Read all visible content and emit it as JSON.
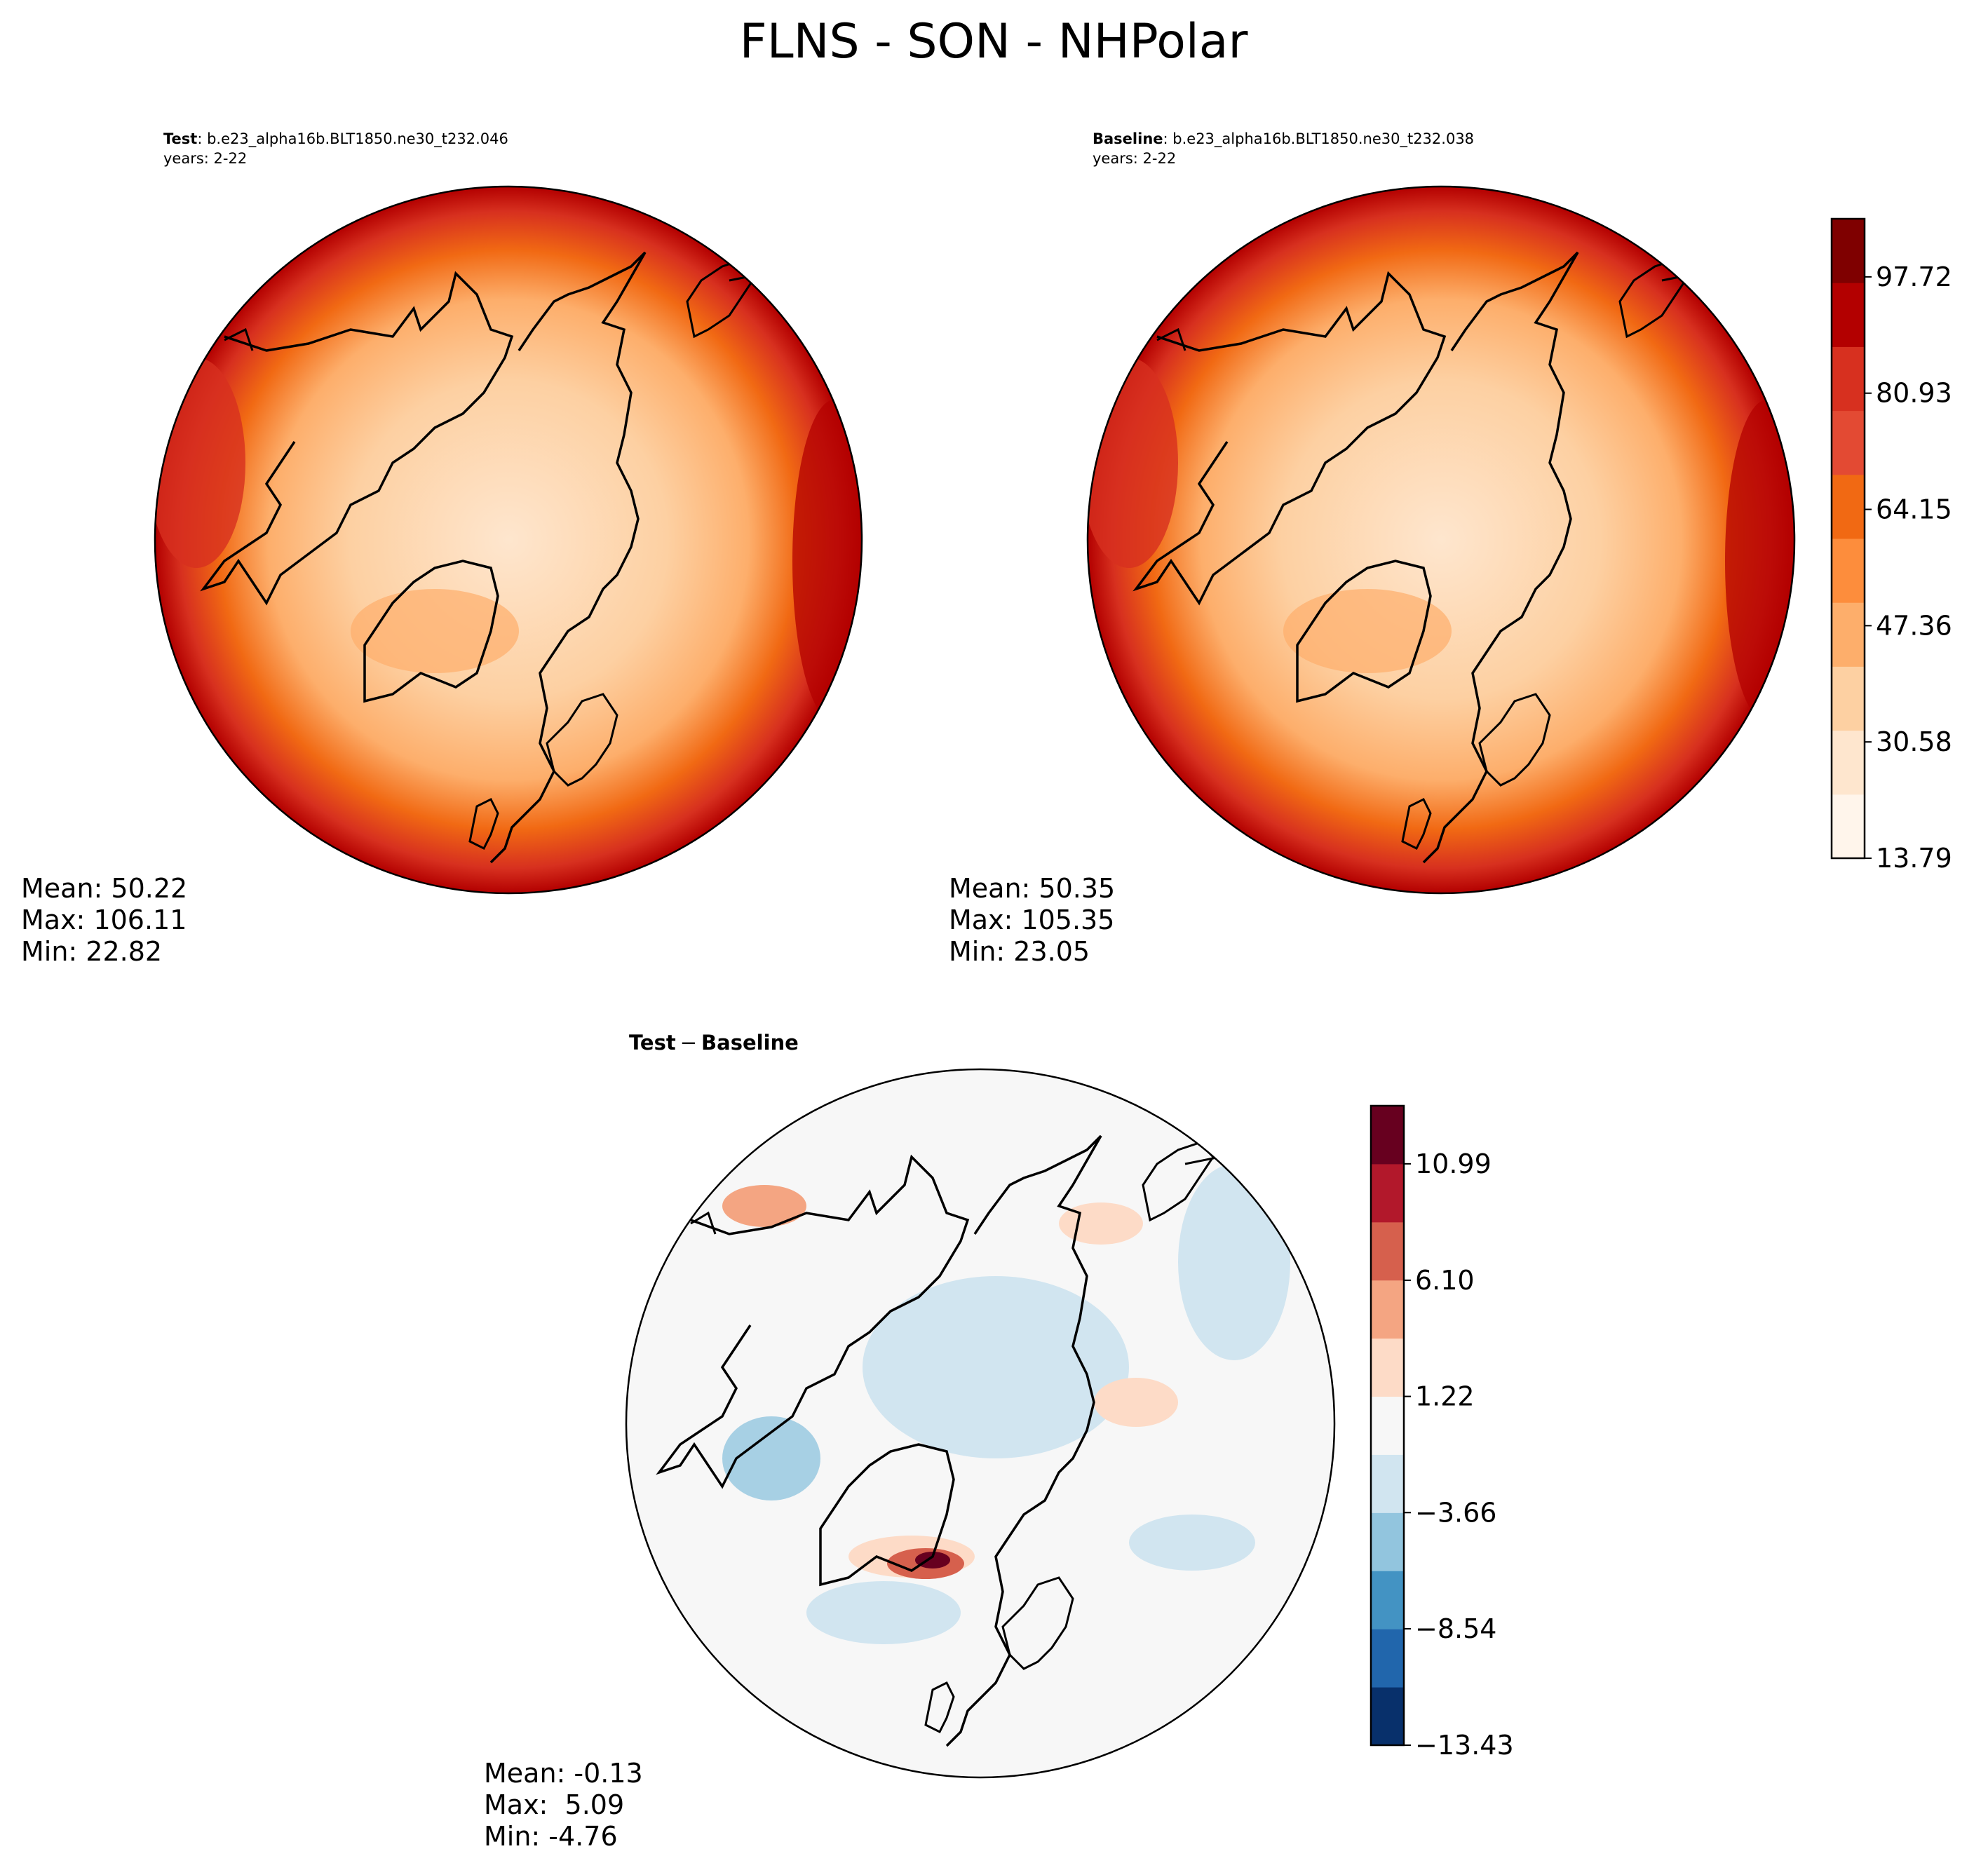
{
  "figure": {
    "title": "FLNS - SON - NHPolar"
  },
  "colors": {
    "reds": [
      "#fff5eb",
      "#fee6ce",
      "#fdd0a2",
      "#fdae6b",
      "#fd8d3c",
      "#f16913",
      "#e34a33",
      "#d7301f",
      "#b30000",
      "#7f0000"
    ],
    "diverging": [
      "#08306b",
      "#2166ac",
      "#4393c3",
      "#92c5de",
      "#d1e5f0",
      "#f7f7f7",
      "#fddbc7",
      "#f4a582",
      "#d6604d",
      "#b2182b",
      "#67001f"
    ],
    "coast": "#000000"
  },
  "chart_data": [
    {
      "type": "heatmap",
      "id": "test",
      "title_bold": "Test",
      "title_rest": ": b.e23_alpha16b.BLT1850.ne30_t232.046",
      "years": "years: 2-22",
      "projection": "north-polar-stereographic",
      "stats": {
        "mean": "Mean: 50.22",
        "max": "Max: 106.11",
        "min": "Min: 22.82"
      }
    },
    {
      "type": "heatmap",
      "id": "baseline",
      "title_bold": "Baseline",
      "title_rest": ": b.e23_alpha16b.BLT1850.ne30_t232.038",
      "years": "years: 2-22",
      "projection": "north-polar-stereographic",
      "stats": {
        "mean": "Mean: 50.35",
        "max": "Max: 105.35",
        "min": "Min: 23.05"
      },
      "colorbar": {
        "range": [
          13.79,
          106.11
        ],
        "levels": 10,
        "ticks": [
          13.79,
          30.58,
          47.36,
          64.15,
          80.93,
          97.72
        ],
        "tick_labels": [
          "13.79",
          "30.58",
          "47.36",
          "64.15",
          "80.93",
          "97.72"
        ]
      }
    },
    {
      "type": "heatmap",
      "id": "diff",
      "title_bold": "Test",
      "title_minus": "−",
      "title_bold2": "Baseline",
      "projection": "north-polar-stereographic",
      "stats": {
        "mean": "Mean: -0.13",
        "max": "Max:  5.09",
        "min": "Min: -4.76"
      },
      "colorbar": {
        "range": [
          -13.43,
          13.43
        ],
        "levels": 11,
        "ticks": [
          -13.43,
          -8.54,
          -3.66,
          1.22,
          6.1,
          10.99
        ],
        "tick_labels": [
          "−13.43",
          "−8.54",
          "−3.66",
          "1.22",
          "6.10",
          "10.99"
        ]
      }
    }
  ]
}
